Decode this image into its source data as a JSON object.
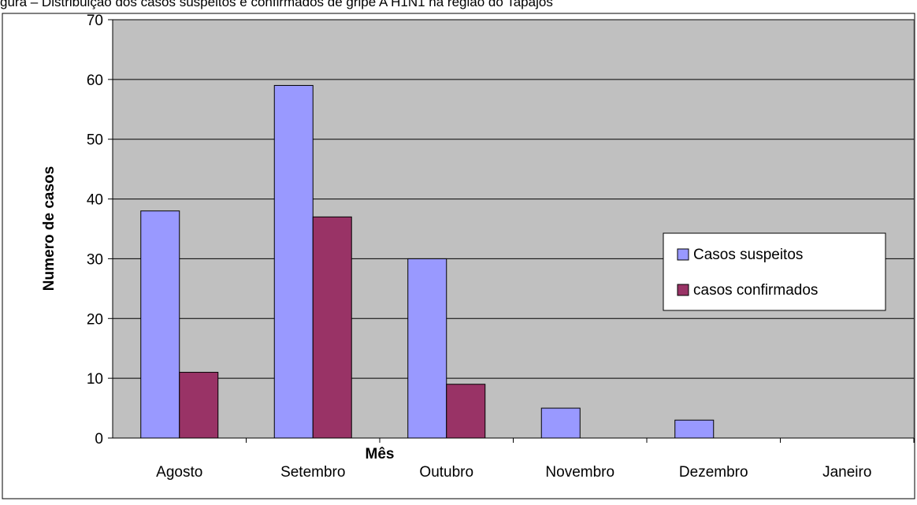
{
  "top_caption": "gura – Distribuição dos casos suspeitos e confirmados de gripe A H1N1 na região do Tapajós",
  "chart_data": {
    "type": "bar",
    "title": "",
    "xlabel": "Mês",
    "ylabel": "Numero de casos",
    "ylim": [
      0,
      70
    ],
    "yticks": [
      0,
      10,
      20,
      30,
      40,
      50,
      60,
      70
    ],
    "grid": true,
    "legend_position": "right",
    "categories": [
      "Agosto",
      "Setembro",
      "Outubro",
      "Novembro",
      "Dezembro",
      "Janeiro"
    ],
    "series": [
      {
        "name": "Casos suspeitos",
        "color": "#9999ff",
        "values": [
          38,
          59,
          30,
          5,
          3,
          0
        ]
      },
      {
        "name": "casos confirmados",
        "color": "#993366",
        "values": [
          11,
          37,
          9,
          0,
          0,
          0
        ]
      }
    ],
    "plot_background": "#c0c0c0"
  }
}
